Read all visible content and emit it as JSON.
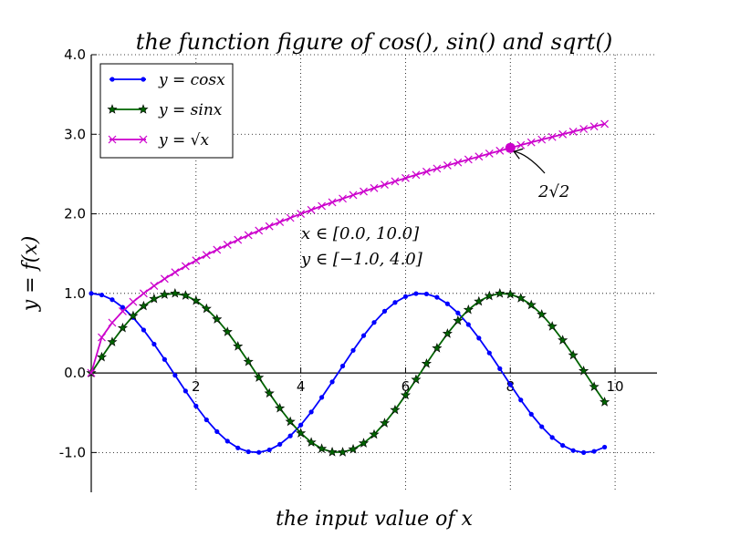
{
  "chart_data": {
    "type": "line",
    "title": "the function figure of cos(),  sin() and sqrt()",
    "xlabel": "the input value of x",
    "ylabel": "y = f(x)",
    "xlim": [
      0,
      10.8
    ],
    "ylim": [
      -1.5,
      4.0
    ],
    "x_ticks": [
      2,
      4,
      6,
      8,
      10
    ],
    "x_tick_labels": [
      "2",
      "4",
      "6",
      "8",
      "10"
    ],
    "y_ticks": [
      4.0,
      3.0,
      2.0,
      1.0,
      0.0,
      -1.0
    ],
    "y_tick_labels": [
      "4.0",
      "3.0",
      "2.0",
      "1.0",
      "0.0",
      "-1.0"
    ],
    "grid": true,
    "legend_position": "upper-left",
    "x": [
      0,
      0.2,
      0.4,
      0.6,
      0.8,
      1.0,
      1.2,
      1.4,
      1.6,
      1.8,
      2.0,
      2.2,
      2.4,
      2.6,
      2.8,
      3.0,
      3.2,
      3.4,
      3.6,
      3.8,
      4.0,
      4.2,
      4.4,
      4.6,
      4.8,
      5.0,
      5.2,
      5.4,
      5.6,
      5.8,
      6.0,
      6.2,
      6.4,
      6.6,
      6.8,
      7.0,
      7.2,
      7.4,
      7.6,
      7.8,
      8.0,
      8.2,
      8.4,
      8.6,
      8.8,
      9.0,
      9.2,
      9.4,
      9.6,
      9.8
    ],
    "series": [
      {
        "name": "y = cosx",
        "color": "#0000ff",
        "marker": "dot",
        "values": [
          1.0,
          0.98,
          0.921,
          0.825,
          0.697,
          0.54,
          0.362,
          0.17,
          -0.029,
          -0.227,
          -0.416,
          -0.589,
          -0.737,
          -0.857,
          -0.942,
          -0.99,
          -0.998,
          -0.967,
          -0.897,
          -0.791,
          -0.654,
          -0.49,
          -0.307,
          -0.112,
          0.087,
          0.284,
          0.469,
          0.635,
          0.776,
          0.886,
          0.96,
          0.997,
          0.993,
          0.951,
          0.869,
          0.754,
          0.608,
          0.438,
          0.251,
          0.054,
          -0.146,
          -0.34,
          -0.519,
          -0.676,
          -0.811,
          -0.911,
          -0.975,
          -1.0,
          -0.985,
          -0.932
        ]
      },
      {
        "name": "y = sinx",
        "color": "#006400",
        "marker": "star",
        "values": [
          0.0,
          0.199,
          0.389,
          0.565,
          0.717,
          0.841,
          0.932,
          0.985,
          1.0,
          0.974,
          0.909,
          0.808,
          0.675,
          0.516,
          0.335,
          0.141,
          -0.058,
          -0.256,
          -0.443,
          -0.612,
          -0.757,
          -0.872,
          -0.952,
          -0.994,
          -0.996,
          -0.959,
          -0.883,
          -0.773,
          -0.631,
          -0.465,
          -0.279,
          -0.083,
          0.117,
          0.312,
          0.494,
          0.657,
          0.794,
          0.899,
          0.968,
          0.999,
          0.989,
          0.941,
          0.855,
          0.735,
          0.585,
          0.412,
          0.223,
          0.025,
          -0.174,
          -0.366
        ]
      },
      {
        "name": "y = √x",
        "color": "#cc00cc",
        "marker": "x",
        "values": [
          0.0,
          0.447,
          0.632,
          0.775,
          0.894,
          1.0,
          1.095,
          1.183,
          1.265,
          1.342,
          1.414,
          1.483,
          1.549,
          1.612,
          1.673,
          1.732,
          1.789,
          1.844,
          1.897,
          1.949,
          2.0,
          2.049,
          2.098,
          2.145,
          2.191,
          2.236,
          2.28,
          2.324,
          2.366,
          2.408,
          2.449,
          2.49,
          2.53,
          2.569,
          2.608,
          2.646,
          2.683,
          2.72,
          2.757,
          2.793,
          2.828,
          2.864,
          2.898,
          2.933,
          2.966,
          3.0,
          3.033,
          3.066,
          3.098,
          3.13
        ]
      }
    ],
    "highlight_point": {
      "x": 8,
      "y": 2.828,
      "color": "#cc00cc",
      "label": "2√2"
    },
    "range_text": [
      "x ∈ [0.0,  10.0]",
      "y ∈ [−1.0,  4.0]"
    ]
  }
}
